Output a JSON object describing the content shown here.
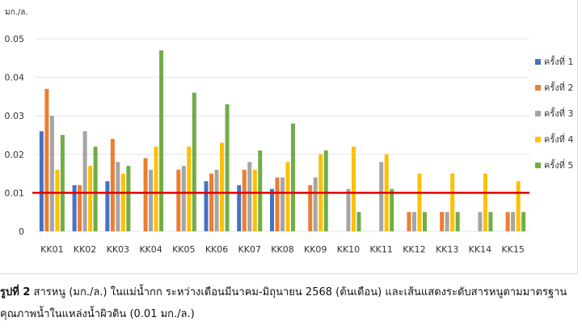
{
  "chart_data": {
    "type": "bar",
    "unit_label": "มก./ล.",
    "categories": [
      "KK01",
      "KK02",
      "KK03",
      "KK04",
      "KK05",
      "KK06",
      "KK07",
      "KK08",
      "KK09",
      "KK10",
      "KK11",
      "KK12",
      "KK13",
      "KK14",
      "KK15"
    ],
    "ylim": [
      0,
      0.05
    ],
    "yticks": [
      "0",
      "0.01",
      "0.02",
      "0.03",
      "0.04",
      "0.05"
    ],
    "grid": true,
    "legend_position": "right",
    "series": [
      {
        "name": "ครั้งที่ 1",
        "color": "#4472C4",
        "values": [
          0.026,
          0.012,
          0.013,
          null,
          null,
          0.013,
          0.012,
          0.011,
          null,
          null,
          null,
          null,
          null,
          null,
          null
        ]
      },
      {
        "name": "ครั้งที่ 2",
        "color": "#ED7D31",
        "values": [
          0.037,
          0.012,
          0.024,
          0.019,
          0.016,
          0.015,
          0.016,
          0.014,
          0.012,
          null,
          null,
          0.005,
          0.005,
          null,
          0.005
        ]
      },
      {
        "name": "ครั้งที่ 3",
        "color": "#A5A5A5",
        "values": [
          0.03,
          0.026,
          0.018,
          0.016,
          0.017,
          0.016,
          0.018,
          0.014,
          0.014,
          0.011,
          0.018,
          0.005,
          0.005,
          0.005,
          0.005
        ]
      },
      {
        "name": "ครั้งที่ 4",
        "color": "#FFC000",
        "values": [
          0.016,
          0.017,
          0.015,
          0.022,
          0.022,
          0.023,
          0.016,
          0.018,
          0.02,
          0.022,
          0.02,
          0.015,
          0.015,
          0.015,
          0.013
        ]
      },
      {
        "name": "ครั้งที่ 5",
        "color": "#70AD47",
        "values": [
          0.025,
          0.022,
          0.017,
          0.047,
          0.036,
          0.033,
          0.021,
          0.028,
          0.021,
          0.005,
          0.011,
          0.005,
          0.005,
          0.005,
          0.005
        ]
      }
    ],
    "reference_line": {
      "value": 0.01,
      "color": "#E00000"
    }
  },
  "caption": {
    "label": "รูปที่ 2",
    "line1": " สารหนู (มก./ล.) ในแม่น้ำกก ระหว่างเดือนมีนาคม-มิถุนายน 2568 (ต้นเดือน) และเส้นแสดงระดับสารหนูตามมาตรฐาน",
    "line2": "คุณภาพน้ำในแหล่งน้ำผิวดิน (0.01 มก./ล.)"
  }
}
